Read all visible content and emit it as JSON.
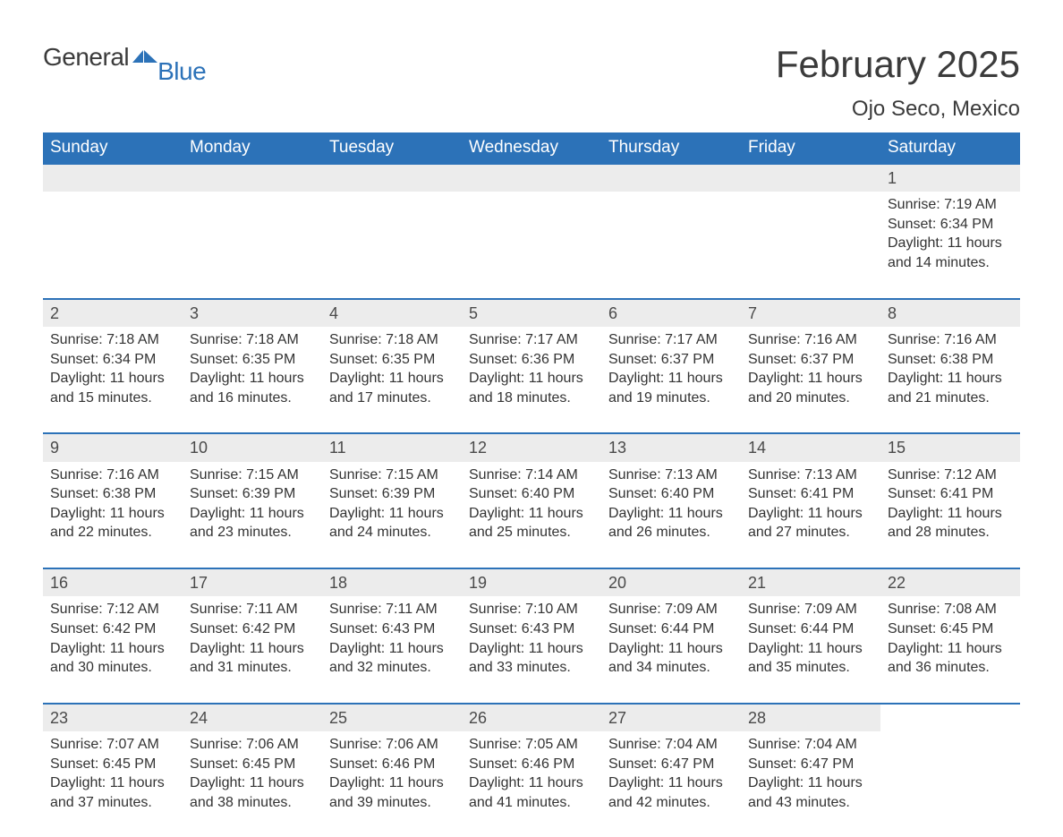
{
  "brand": {
    "text1": "General",
    "text2": "Blue",
    "flag_color": "#2c72b8"
  },
  "month_title": "February 2025",
  "location": "Ojo Seco, Mexico",
  "colors": {
    "header_bg": "#2c72b8",
    "header_text": "#ffffff",
    "daynum_bg": "#ececec",
    "row_border": "#2c72b8",
    "body_text": "#333333",
    "title_text": "#3b3b3b",
    "background": "#ffffff"
  },
  "typography": {
    "month_title_fontsize": 42,
    "location_fontsize": 24,
    "weekday_fontsize": 19,
    "daynum_fontsize": 18,
    "body_fontsize": 16
  },
  "layout": {
    "columns": 7,
    "rows": 5
  },
  "weekdays": [
    "Sunday",
    "Monday",
    "Tuesday",
    "Wednesday",
    "Thursday",
    "Friday",
    "Saturday"
  ],
  "weeks": [
    [
      {
        "empty": true
      },
      {
        "empty": true
      },
      {
        "empty": true
      },
      {
        "empty": true
      },
      {
        "empty": true
      },
      {
        "empty": true
      },
      {
        "day": "1",
        "sunrise": "Sunrise: 7:19 AM",
        "sunset": "Sunset: 6:34 PM",
        "dl1": "Daylight: 11 hours",
        "dl2": "and 14 minutes."
      }
    ],
    [
      {
        "day": "2",
        "sunrise": "Sunrise: 7:18 AM",
        "sunset": "Sunset: 6:34 PM",
        "dl1": "Daylight: 11 hours",
        "dl2": "and 15 minutes."
      },
      {
        "day": "3",
        "sunrise": "Sunrise: 7:18 AM",
        "sunset": "Sunset: 6:35 PM",
        "dl1": "Daylight: 11 hours",
        "dl2": "and 16 minutes."
      },
      {
        "day": "4",
        "sunrise": "Sunrise: 7:18 AM",
        "sunset": "Sunset: 6:35 PM",
        "dl1": "Daylight: 11 hours",
        "dl2": "and 17 minutes."
      },
      {
        "day": "5",
        "sunrise": "Sunrise: 7:17 AM",
        "sunset": "Sunset: 6:36 PM",
        "dl1": "Daylight: 11 hours",
        "dl2": "and 18 minutes."
      },
      {
        "day": "6",
        "sunrise": "Sunrise: 7:17 AM",
        "sunset": "Sunset: 6:37 PM",
        "dl1": "Daylight: 11 hours",
        "dl2": "and 19 minutes."
      },
      {
        "day": "7",
        "sunrise": "Sunrise: 7:16 AM",
        "sunset": "Sunset: 6:37 PM",
        "dl1": "Daylight: 11 hours",
        "dl2": "and 20 minutes."
      },
      {
        "day": "8",
        "sunrise": "Sunrise: 7:16 AM",
        "sunset": "Sunset: 6:38 PM",
        "dl1": "Daylight: 11 hours",
        "dl2": "and 21 minutes."
      }
    ],
    [
      {
        "day": "9",
        "sunrise": "Sunrise: 7:16 AM",
        "sunset": "Sunset: 6:38 PM",
        "dl1": "Daylight: 11 hours",
        "dl2": "and 22 minutes."
      },
      {
        "day": "10",
        "sunrise": "Sunrise: 7:15 AM",
        "sunset": "Sunset: 6:39 PM",
        "dl1": "Daylight: 11 hours",
        "dl2": "and 23 minutes."
      },
      {
        "day": "11",
        "sunrise": "Sunrise: 7:15 AM",
        "sunset": "Sunset: 6:39 PM",
        "dl1": "Daylight: 11 hours",
        "dl2": "and 24 minutes."
      },
      {
        "day": "12",
        "sunrise": "Sunrise: 7:14 AM",
        "sunset": "Sunset: 6:40 PM",
        "dl1": "Daylight: 11 hours",
        "dl2": "and 25 minutes."
      },
      {
        "day": "13",
        "sunrise": "Sunrise: 7:13 AM",
        "sunset": "Sunset: 6:40 PM",
        "dl1": "Daylight: 11 hours",
        "dl2": "and 26 minutes."
      },
      {
        "day": "14",
        "sunrise": "Sunrise: 7:13 AM",
        "sunset": "Sunset: 6:41 PM",
        "dl1": "Daylight: 11 hours",
        "dl2": "and 27 minutes."
      },
      {
        "day": "15",
        "sunrise": "Sunrise: 7:12 AM",
        "sunset": "Sunset: 6:41 PM",
        "dl1": "Daylight: 11 hours",
        "dl2": "and 28 minutes."
      }
    ],
    [
      {
        "day": "16",
        "sunrise": "Sunrise: 7:12 AM",
        "sunset": "Sunset: 6:42 PM",
        "dl1": "Daylight: 11 hours",
        "dl2": "and 30 minutes."
      },
      {
        "day": "17",
        "sunrise": "Sunrise: 7:11 AM",
        "sunset": "Sunset: 6:42 PM",
        "dl1": "Daylight: 11 hours",
        "dl2": "and 31 minutes."
      },
      {
        "day": "18",
        "sunrise": "Sunrise: 7:11 AM",
        "sunset": "Sunset: 6:43 PM",
        "dl1": "Daylight: 11 hours",
        "dl2": "and 32 minutes."
      },
      {
        "day": "19",
        "sunrise": "Sunrise: 7:10 AM",
        "sunset": "Sunset: 6:43 PM",
        "dl1": "Daylight: 11 hours",
        "dl2": "and 33 minutes."
      },
      {
        "day": "20",
        "sunrise": "Sunrise: 7:09 AM",
        "sunset": "Sunset: 6:44 PM",
        "dl1": "Daylight: 11 hours",
        "dl2": "and 34 minutes."
      },
      {
        "day": "21",
        "sunrise": "Sunrise: 7:09 AM",
        "sunset": "Sunset: 6:44 PM",
        "dl1": "Daylight: 11 hours",
        "dl2": "and 35 minutes."
      },
      {
        "day": "22",
        "sunrise": "Sunrise: 7:08 AM",
        "sunset": "Sunset: 6:45 PM",
        "dl1": "Daylight: 11 hours",
        "dl2": "and 36 minutes."
      }
    ],
    [
      {
        "day": "23",
        "sunrise": "Sunrise: 7:07 AM",
        "sunset": "Sunset: 6:45 PM",
        "dl1": "Daylight: 11 hours",
        "dl2": "and 37 minutes."
      },
      {
        "day": "24",
        "sunrise": "Sunrise: 7:06 AM",
        "sunset": "Sunset: 6:45 PM",
        "dl1": "Daylight: 11 hours",
        "dl2": "and 38 minutes."
      },
      {
        "day": "25",
        "sunrise": "Sunrise: 7:06 AM",
        "sunset": "Sunset: 6:46 PM",
        "dl1": "Daylight: 11 hours",
        "dl2": "and 39 minutes."
      },
      {
        "day": "26",
        "sunrise": "Sunrise: 7:05 AM",
        "sunset": "Sunset: 6:46 PM",
        "dl1": "Daylight: 11 hours",
        "dl2": "and 41 minutes."
      },
      {
        "day": "27",
        "sunrise": "Sunrise: 7:04 AM",
        "sunset": "Sunset: 6:47 PM",
        "dl1": "Daylight: 11 hours",
        "dl2": "and 42 minutes."
      },
      {
        "day": "28",
        "sunrise": "Sunrise: 7:04 AM",
        "sunset": "Sunset: 6:47 PM",
        "dl1": "Daylight: 11 hours",
        "dl2": "and 43 minutes."
      },
      {
        "empty": true,
        "noBg": true
      }
    ]
  ]
}
